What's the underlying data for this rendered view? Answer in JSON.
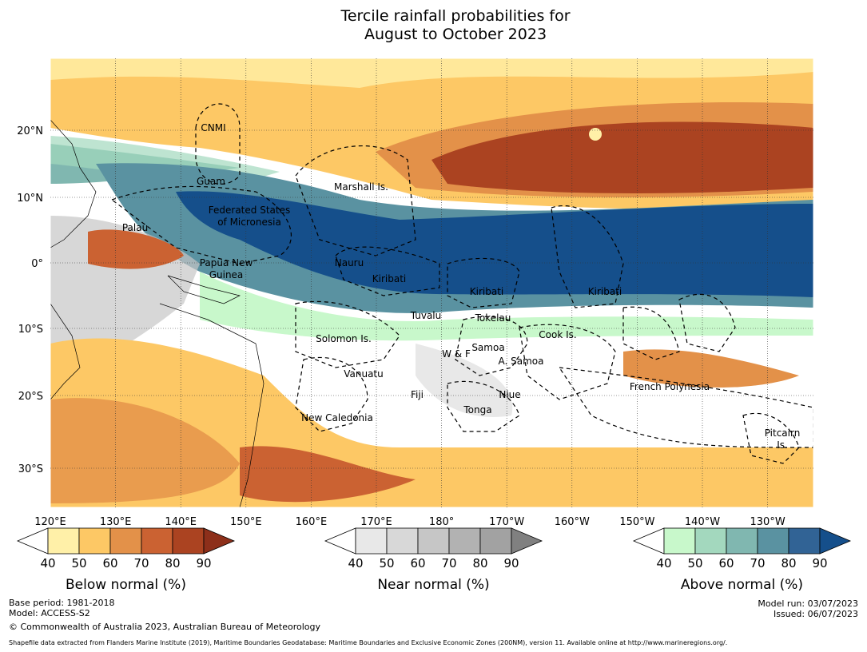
{
  "title_lines": [
    "Tercile rainfall probabilities for",
    "August to October 2023"
  ],
  "map": {
    "lat_ticks": [
      "20°N",
      "10°N",
      "0°",
      "10°S",
      "20°S",
      "30°S"
    ],
    "lon_ticks": [
      "120°E",
      "130°E",
      "140°E",
      "150°E",
      "160°E",
      "170°E",
      "180°",
      "170°W",
      "160°W",
      "150°W",
      "140°W",
      "130°W"
    ],
    "regions": [
      "CNMI",
      "Guam",
      "Marshall Is.",
      "Federated States",
      "of Micronesia",
      "Palau",
      "Papua New",
      "Guinea",
      "Nauru",
      "Kiribati",
      "Kiribati",
      "Kiribati",
      "Tuvalu",
      "Tokelau",
      "Cook Is.",
      "Solomon Is.",
      "W & F",
      "Samoa",
      "A. Samoa",
      "Vanuatu",
      "Fiji",
      "Niue",
      "French Polynesia",
      "Tonga",
      "New Caledonia",
      "Pitcairn",
      "Is."
    ]
  },
  "colorbars": [
    {
      "label": "Below normal (%)",
      "ticks": [
        40,
        50,
        60,
        70,
        80,
        90
      ],
      "colors": [
        "#fff0a8",
        "#fdc865",
        "#e39149",
        "#cb6232",
        "#ab4321",
        "#8d2f1a"
      ]
    },
    {
      "label": "Near normal (%)",
      "ticks": [
        40,
        50,
        60,
        70,
        80,
        90
      ],
      "colors": [
        "#e8e8e8",
        "#d8d8d8",
        "#c6c6c6",
        "#b2b2b2",
        "#a2a2a2",
        "#808080"
      ]
    },
    {
      "label": "Above normal (%)",
      "ticks": [
        40,
        50,
        60,
        70,
        80,
        90
      ],
      "colors": [
        "#c8f8cb",
        "#a3d8be",
        "#80b7b0",
        "#5a92a1",
        "#316395",
        "#154f8b"
      ]
    }
  ],
  "footer": {
    "left": [
      "Base period: 1981-2018",
      "Model: ACCESS-S2",
      "© Commonwealth of Australia 2023, Australian Bureau of Meteorology"
    ],
    "right": [
      "Model run: 03/07/2023",
      "Issued: 06/07/2023"
    ],
    "source": "Shapefile data extracted from Flanders Marine Institute (2019), Maritime Boundaries Geodatabase: Maritime Boundaries and Exclusive Economic Zones (200NM), version 11. Available online at http://www.marineregions.org/."
  }
}
